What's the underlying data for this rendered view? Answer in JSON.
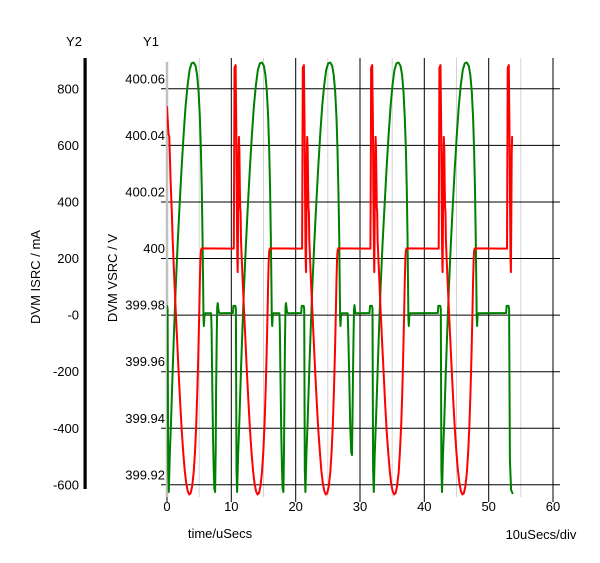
{
  "chart_data": {
    "type": "line",
    "title": "",
    "grid": "on",
    "x_axis": {
      "label": "time/uSecs",
      "per_div": "10uSecs/div",
      "ticks": [
        0,
        10,
        20,
        30,
        40,
        50,
        60
      ],
      "tick_labels": [
        "0",
        "10",
        "20",
        "30",
        "40",
        "50",
        "60"
      ],
      "minor_step": 5,
      "min": 0,
      "max": 61.09
    },
    "y1_axis": {
      "name": "Y1",
      "label": "DVM VSRC / V",
      "tick_labels": [
        "400.06",
        "400.04",
        "400.02",
        "400",
        "399.98",
        "399.96",
        "399.94",
        "399.92"
      ],
      "tick_values": [
        400.06,
        400.04,
        400.02,
        400.0,
        399.98,
        399.96,
        399.94,
        399.92
      ],
      "min": 399.9157,
      "max": 400.0709
    },
    "y2_axis": {
      "name": "Y2",
      "label": "DVM ISRC / mA",
      "tick_labels": [
        "800",
        "600",
        "400",
        "200",
        "-0",
        "-200",
        "-400",
        "-600"
      ],
      "tick_values": [
        800,
        600,
        400,
        200,
        0,
        -200,
        -400,
        -600
      ],
      "min": -643.7,
      "max": 908.9
    },
    "series": [
      {
        "name": "DVM VSRC",
        "axis": "y1",
        "color": "#ff0000",
        "flat_level": 400.0035,
        "spike_times": [
          10.57,
          21.19,
          31.81,
          42.42
        ],
        "initial_time": -0.05,
        "final_time": 53.04,
        "initial_points": [
          [
            0,
            400.0536
          ],
          [
            0.23,
            400.0441
          ],
          [
            0.36,
            400.043
          ],
          [
            0.54,
            400.0285
          ],
          [
            0.75,
            400.0164
          ]
        ],
        "cycle_shape": [
          [
            -0.19,
            400.0035
          ],
          [
            -0.12,
            400.0384
          ],
          [
            -0.08,
            400.0674
          ],
          [
            0.09,
            400.0684
          ],
          [
            0.19,
            400.049
          ],
          [
            0.28,
            400.0207
          ],
          [
            0.36,
            400.0002
          ],
          [
            0.42,
            399.9952
          ],
          [
            0.48,
            400.0136
          ],
          [
            0.54,
            400.0366
          ],
          [
            0.61,
            400.043
          ],
          [
            0.68,
            400.0384
          ],
          [
            0.75,
            400.026
          ],
          [
            0.81,
            400.0179
          ],
          [
            0.87,
            400.0164
          ],
          [
            0.93,
            400.0065
          ],
          [
            1.17,
            399.9935
          ],
          [
            1.4,
            399.9818
          ],
          [
            1.63,
            399.9705
          ],
          [
            1.87,
            399.9592
          ],
          [
            2.1,
            399.9489
          ],
          [
            2.33,
            399.9394
          ],
          [
            2.57,
            399.9316
          ],
          [
            2.8,
            399.9252
          ],
          [
            3.03,
            399.9206
          ],
          [
            3.26,
            399.9178
          ],
          [
            3.5,
            399.9166
          ],
          [
            3.73,
            399.9171
          ],
          [
            3.96,
            399.9196
          ],
          [
            4.2,
            399.9245
          ],
          [
            4.4,
            399.9316
          ],
          [
            4.59,
            399.9411
          ],
          [
            4.76,
            399.9528
          ],
          [
            4.91,
            399.9659
          ],
          [
            5.05,
            399.98
          ],
          [
            5.16,
            399.9924
          ],
          [
            5.25,
            400.0002
          ],
          [
            5.33,
            400.0029
          ],
          [
            5.44,
            400.0036
          ]
        ],
        "bowl_start_dt": 0.93,
        "final_end_dt": 0.61
      },
      {
        "name": "DVM ISRC",
        "axis": "y2",
        "color": "#008000",
        "flat_level": 6,
        "cycles": [
          {
            "t": 0.09,
            "vdip": "deep"
          },
          {
            "t": 10.71,
            "vdip": "deep"
          },
          {
            "t": 21.33,
            "vdip": "shallow"
          },
          {
            "t": 31.95,
            "vdip": "none"
          },
          {
            "t": 42.56,
            "vdip": "none"
          },
          {
            "t": 53.18,
            "vdip": "end"
          }
        ],
        "arc_shape": [
          [
            -0.47,
            7
          ],
          [
            -0.39,
            32
          ],
          [
            -0.08,
            32
          ],
          [
            0,
            21
          ],
          [
            0.09,
            -548
          ],
          [
            0.19,
            -626
          ],
          [
            0.34,
            -495
          ],
          [
            0.54,
            -371
          ],
          [
            0.78,
            -202
          ],
          [
            1.01,
            -53
          ],
          [
            1.24,
            88
          ],
          [
            1.55,
            248
          ],
          [
            1.87,
            389
          ],
          [
            2.18,
            520
          ],
          [
            2.49,
            637
          ],
          [
            2.8,
            739
          ],
          [
            3.11,
            813
          ],
          [
            3.42,
            867
          ],
          [
            3.73,
            890
          ],
          [
            4.04,
            893
          ],
          [
            4.35,
            881
          ],
          [
            4.59,
            849
          ],
          [
            4.82,
            789
          ],
          [
            5.02,
            697
          ],
          [
            5.18,
            584
          ],
          [
            5.32,
            442
          ],
          [
            5.43,
            283
          ],
          [
            5.52,
            117
          ],
          [
            5.58,
            -11
          ],
          [
            5.64,
            -39
          ],
          [
            5.72,
            -4
          ],
          [
            5.83,
            6
          ]
        ],
        "vdip_deep": [
          [
            6.76,
            6
          ],
          [
            6.84,
            -53
          ],
          [
            6.9,
            -177
          ],
          [
            6.98,
            -301
          ],
          [
            7.06,
            -424
          ],
          [
            7.15,
            -531
          ],
          [
            7.26,
            -612
          ],
          [
            7.38,
            -626
          ],
          [
            7.48,
            -478
          ],
          [
            7.55,
            -265
          ],
          [
            7.63,
            -88
          ],
          [
            7.71,
            28
          ],
          [
            7.79,
            42
          ],
          [
            7.93,
            14
          ],
          [
            8.05,
            6
          ]
        ],
        "vdip_shallow": [
          [
            6.76,
            6
          ],
          [
            6.84,
            -53
          ],
          [
            7.0,
            -230
          ],
          [
            7.15,
            -389
          ],
          [
            7.31,
            -485
          ],
          [
            7.43,
            -495
          ],
          [
            7.54,
            -300
          ],
          [
            7.65,
            -106
          ],
          [
            7.74,
            18
          ],
          [
            7.82,
            35
          ],
          [
            7.96,
            6
          ]
        ],
        "end_shape": [
          [
            -0.47,
            7
          ],
          [
            -0.39,
            32
          ],
          [
            -0.08,
            32
          ],
          [
            0,
            21
          ],
          [
            0.12,
            -513
          ],
          [
            0.31,
            -619
          ],
          [
            0.53,
            -630
          ]
        ]
      }
    ]
  },
  "colors": {
    "background": "#ffffff",
    "major_grid": "#000000",
    "minor_grid": "#d4d4d4",
    "y1_axis_line": "#c0c0c0",
    "y2_axis_bar": "#000000",
    "vsrc_trace": "#ff0000",
    "isrc_trace": "#008000",
    "text": "#000000"
  }
}
